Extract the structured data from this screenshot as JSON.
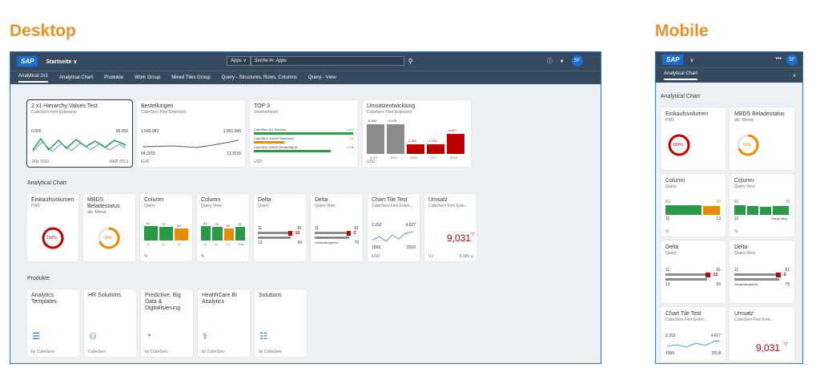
{
  "headings": {
    "desktop": "Desktop",
    "mobile": "Mobile"
  },
  "shell": {
    "logo": "SAP",
    "title": "Startseite ∨",
    "apps": "Apps ∨",
    "search_placeholder": "Suche in: Apps",
    "avatar": "SF"
  },
  "tabs": [
    "Analytical 2x1",
    "Analytical Chart",
    "Produkte",
    "Work Group",
    "Mixed Tiles Group",
    "Query - Structures, Rows, Columns",
    "Query - View"
  ],
  "groups": {
    "g1": "Analytical Chart",
    "g2": "Produkte"
  },
  "tiles1": {
    "t1": {
      "title": "2 x1 Hierarchy Values Test",
      "sub": "CubeServ Fiori Extension",
      "v1": "0.000",
      "v2": "68.250",
      "f1": "JAN 2010",
      "f2": "MAR 2013"
    },
    "t2": {
      "title": "Bestellungen",
      "sub": "CubeServ Fiori Extension",
      "v1": "1.549.983",
      "v2": "1.861.940",
      "f1": "04.2015",
      "f2": "11.2015",
      "unit": "EUR"
    },
    "t3": {
      "title": "TOP 3",
      "sub": "Unternehmen",
      "r1": "CubeServ AG Schweiz",
      "n1": "1.847",
      "r2": "CubeServ GmbH Österreich",
      "n2": "545",
      "r3": "CubeServ GmbH Deutschland",
      "n3": "1.436",
      "unit": "USD"
    },
    "t4": {
      "title": "Umsatzentwicklung",
      "sub": "CubeServ Fiori Extension",
      "b": [
        "6.840",
        "6.878",
        "2.252",
        "2.215",
        "4.627"
      ],
      "y": [
        "2013",
        "2014",
        "2016",
        "2017",
        "2018"
      ],
      "unit": "USD"
    }
  },
  "tiles2": {
    "a": {
      "title": "Einkaufsvolumen",
      "sub": "PW1",
      "val": "100%"
    },
    "b": {
      "title": "MBDS Beladestatus",
      "sub": "akt. Monat",
      "val": "69%"
    },
    "c": {
      "title": "Column",
      "sub": "Query",
      "n": [
        "81",
        "75",
        "69"
      ],
      "x": [
        "11",
        "12",
        "13"
      ],
      "u": "%"
    },
    "d": {
      "title": "Column",
      "sub": "Query View",
      "n": [
        "81",
        "75",
        "69",
        "78"
      ],
      "x": [
        "11",
        "12",
        "13",
        "Ges..."
      ],
      "u": "%"
    },
    "e": {
      "title": "Delta",
      "sub": "Query",
      "l1": "11",
      "v1": "81",
      "d": "-12",
      "l2": "13",
      "v2": "69"
    },
    "f": {
      "title": "Delta",
      "sub": "Query View",
      "l1": "11",
      "v1": "81",
      "d": "-3",
      "l2": "Gesamtergebnis",
      "v2": "78"
    },
    "g": {
      "title": "Chart Tile Test",
      "sub": "CubeServ Fiori Exten...",
      "v1": "2.252",
      "v2": "4.627",
      "x1": "1999",
      "x2": "2018",
      "u": "USD"
    },
    "h": {
      "title": "Umsatz",
      "sub": "CubeServ Fiori Exte...",
      "val": "9,031",
      "f1": "VJ",
      "f2": "9,285"
    }
  },
  "tiles3": [
    {
      "title": "Analytics Templates",
      "icon": "bar-chart-icon",
      "foot": "by CubeServ"
    },
    {
      "title": "HR Solutions",
      "icon": "people-icon",
      "foot": "CubeServ"
    },
    {
      "title": "Predictive, Big Data & Digitalisierung",
      "icon": "gauge-icon",
      "foot": "by CubeServ"
    },
    {
      "title": "HealthCare BI Analytics",
      "icon": "stethoscope-icon",
      "foot": "by CubeServ"
    },
    {
      "title": "Solutions",
      "icon": "org-chart-icon",
      "foot": "by CubeServ"
    }
  ],
  "mobile": {
    "logo": "SAP",
    "tab": "Analytical Chart",
    "group": "Analytical Chart",
    "avatar": "SF",
    "more": "•••",
    "t1": {
      "title": "Einkaufsvolumen",
      "sub": "PW1",
      "val": "100%"
    },
    "t2": {
      "title": "MBDS Beladestatus",
      "sub": "akt. Monat",
      "val": "69%"
    },
    "t3": {
      "title": "Column",
      "sub": "Query",
      "n1": "81",
      "n2": "69",
      "x1": "11",
      "x2": "13",
      "u": "%"
    },
    "t4": {
      "title": "Column",
      "sub": "Query View",
      "n1": "81",
      "n2": "78",
      "x1": "11",
      "x2": "Gesamterg...",
      "u": "%"
    },
    "t5": {
      "title": "Delta",
      "sub": "Query",
      "l1": "11",
      "v1": "81",
      "d": "-12",
      "l2": "13",
      "v2": "69"
    },
    "t6": {
      "title": "Delta",
      "sub": "Query View",
      "l1": "11",
      "v1": "81",
      "d": "-3",
      "l2": "Gesamtergebnis",
      "v2": "78"
    },
    "t7": {
      "title": "Chart Tile Test",
      "sub": "CubeServ Fiori Exten...",
      "v1": "2.252",
      "v2": "4.627",
      "x1": "1999",
      "x2": "2018"
    },
    "t8": {
      "title": "Umsatz",
      "sub": "CubeServ Fiori Exte...",
      "val": "9,031"
    }
  },
  "colors": {
    "shell": "#354a5f",
    "good": "#2b9a48",
    "bad": "#bb0000",
    "warn": "#e78c07",
    "brand": "#1c6fd1",
    "accent": "#e8912b"
  }
}
